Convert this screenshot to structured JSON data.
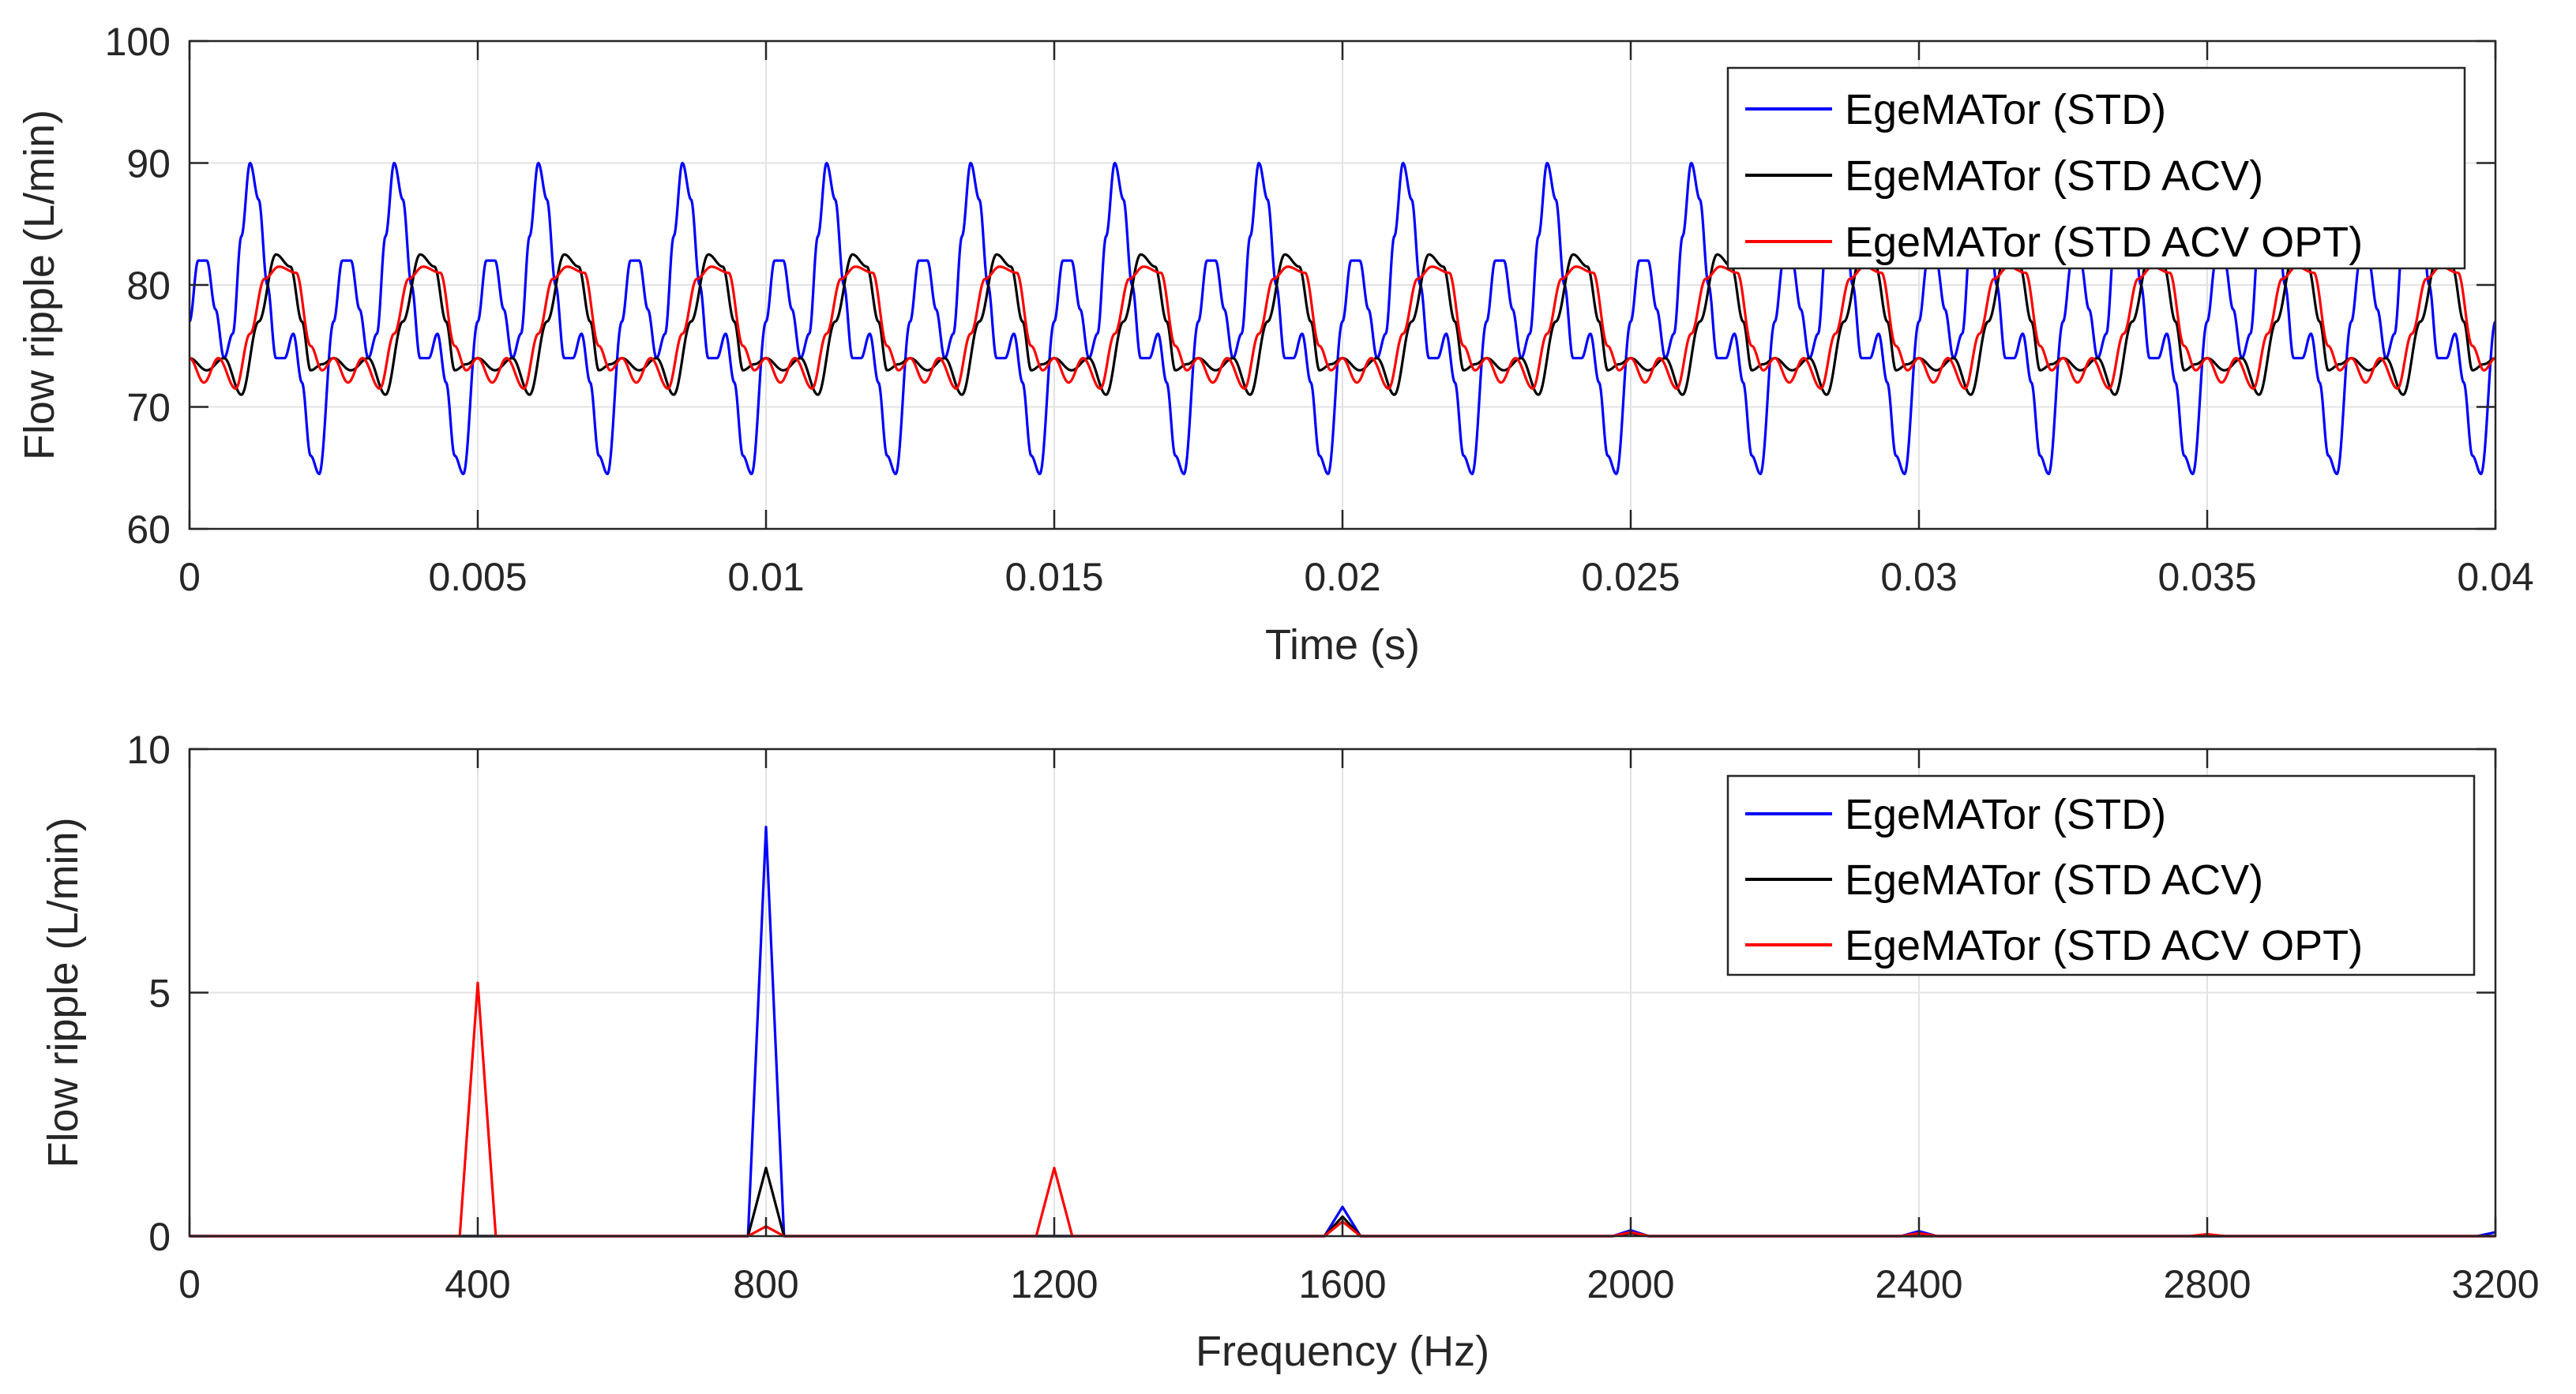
{
  "chart_data": [
    {
      "type": "line",
      "title": "",
      "xlabel": "Time (s)",
      "ylabel": "Flow ripple (L/min)",
      "xlim": [
        0,
        0.04
      ],
      "ylim": [
        60,
        100
      ],
      "xticks": [
        0,
        0.005,
        0.01,
        0.015,
        0.02,
        0.025,
        0.03,
        0.035,
        0.04
      ],
      "xtick_labels": [
        "0",
        "0.005",
        "0.01",
        "0.015",
        "0.02",
        "0.025",
        "0.03",
        "0.035",
        "0.04"
      ],
      "yticks": [
        60,
        70,
        80,
        90,
        100
      ],
      "ytick_labels": [
        "60",
        "70",
        "80",
        "90",
        "100"
      ],
      "grid": true,
      "legend_position": "top-right",
      "period_s": 0.0025,
      "series": [
        {
          "name": "EgeMATor (STD)",
          "color": "#0000ff",
          "phase": [
            0,
            0.06,
            0.12,
            0.18,
            0.24,
            0.3,
            0.36,
            0.42,
            0.48,
            0.54,
            0.6,
            0.66,
            0.72,
            0.78,
            0.84,
            0.9,
            1.0
          ],
          "values": [
            77,
            82,
            82,
            78,
            74,
            76,
            84,
            90,
            87,
            80,
            74,
            74,
            76,
            72,
            66,
            64.5,
            77
          ]
        },
        {
          "name": "EgeMATor (STD ACV)",
          "color": "#000000",
          "phase": [
            0,
            0.12,
            0.24,
            0.36,
            0.48,
            0.6,
            0.7,
            0.78,
            0.84,
            0.92,
            1.0
          ],
          "values": [
            74,
            73,
            74,
            71,
            77,
            82.5,
            81.5,
            77,
            73,
            73.5,
            74
          ]
        },
        {
          "name": "EgeMATor (STD ACV OPT)",
          "color": "#ff0000",
          "phase": [
            0,
            0.1,
            0.2,
            0.32,
            0.42,
            0.52,
            0.62,
            0.74,
            0.84,
            0.92,
            1.0
          ],
          "values": [
            74,
            72,
            74,
            71.5,
            76,
            80.5,
            81.5,
            81,
            75,
            73,
            74
          ]
        }
      ]
    },
    {
      "type": "line",
      "title": "",
      "xlabel": "Frequency (Hz)",
      "ylabel": "Flow ripple (L/min)",
      "xlim": [
        0,
        3200
      ],
      "ylim": [
        0,
        10
      ],
      "xticks": [
        0,
        400,
        800,
        1200,
        1600,
        2000,
        2400,
        2800,
        3200
      ],
      "xtick_labels": [
        "0",
        "400",
        "800",
        "1200",
        "1600",
        "2000",
        "2400",
        "2800",
        "3200"
      ],
      "yticks": [
        0,
        5,
        10
      ],
      "ytick_labels": [
        "0",
        "5",
        "10"
      ],
      "grid": true,
      "legend_position": "top-right",
      "series": [
        {
          "name": "EgeMATor (STD)",
          "color": "#0000ff",
          "x": [
            0,
            775,
            800,
            825,
            1575,
            1600,
            1625,
            1975,
            2000,
            2025,
            2375,
            2400,
            2425,
            3175,
            3200
          ],
          "values": [
            0,
            0,
            8.4,
            0,
            0,
            0.6,
            0,
            0,
            0.12,
            0,
            0,
            0.1,
            0,
            0,
            0.08
          ]
        },
        {
          "name": "EgeMATor (STD ACV)",
          "color": "#000000",
          "x": [
            0,
            775,
            800,
            825,
            1575,
            1600,
            1625,
            1975,
            2000,
            2025,
            3200
          ],
          "values": [
            0,
            0,
            1.4,
            0,
            0,
            0.4,
            0,
            0,
            0.06,
            0,
            0
          ]
        },
        {
          "name": "EgeMATor (STD ACV OPT)",
          "color": "#ff0000",
          "x": [
            0,
            375,
            400,
            425,
            775,
            800,
            825,
            1175,
            1200,
            1225,
            1575,
            1600,
            1625,
            1975,
            2000,
            2025,
            2375,
            2400,
            2425,
            2775,
            2800,
            2825,
            3200
          ],
          "values": [
            0,
            0,
            5.2,
            0,
            0,
            0.2,
            0,
            0,
            1.4,
            0,
            0,
            0.3,
            0,
            0,
            0.08,
            0,
            0,
            0.06,
            0,
            0,
            0.04,
            0,
            0
          ]
        }
      ]
    }
  ]
}
